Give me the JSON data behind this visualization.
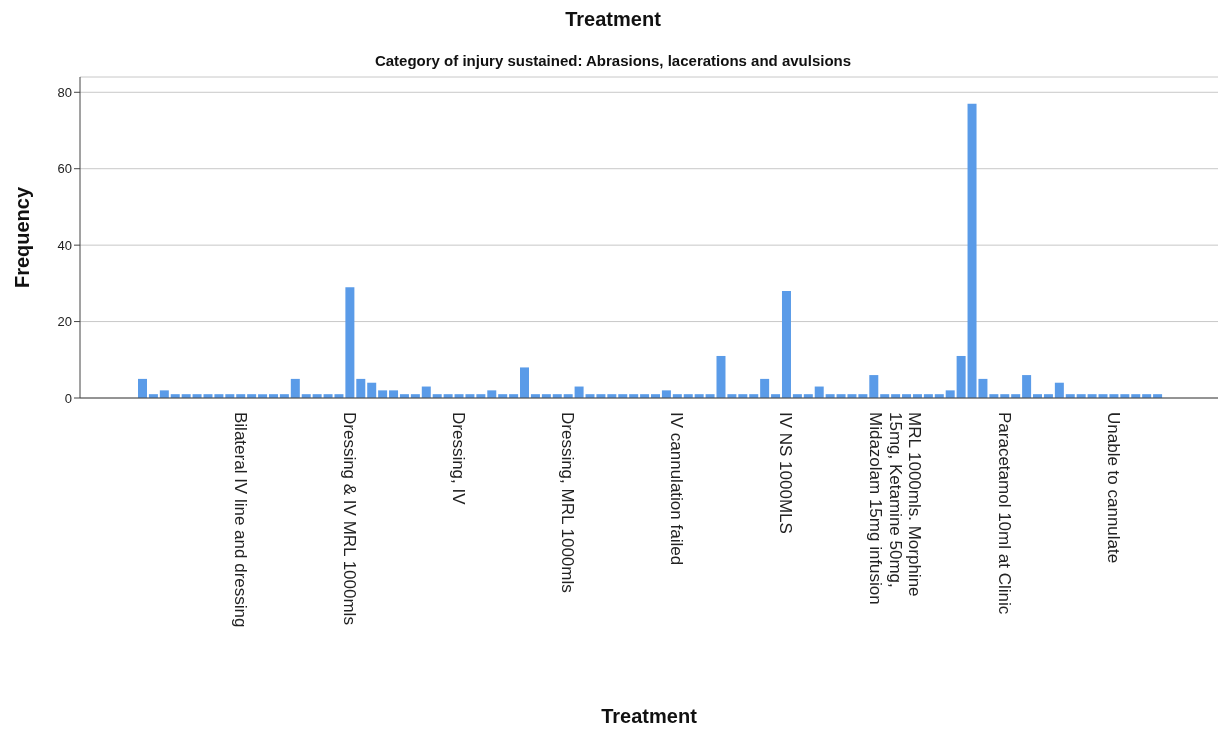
{
  "chart_data": {
    "type": "bar",
    "title": "Treatment",
    "subtitle": "Category of injury sustained: Abrasions, lacerations and avulsions",
    "xlabel": "Treatment",
    "ylabel": "Frequency",
    "categories": [
      null,
      null,
      null,
      null,
      null,
      null,
      null,
      null,
      null,
      "Bilateral IV line and dressing",
      null,
      null,
      null,
      null,
      null,
      null,
      null,
      null,
      null,
      "Dressing & IV MRL 1000mls",
      null,
      null,
      null,
      null,
      null,
      null,
      null,
      null,
      null,
      "Dressing, IV",
      null,
      null,
      null,
      null,
      null,
      null,
      null,
      null,
      null,
      "Dressing, MRL 1000mls",
      null,
      null,
      null,
      null,
      null,
      null,
      null,
      null,
      null,
      "IV cannulation failed",
      null,
      null,
      null,
      null,
      null,
      null,
      null,
      null,
      null,
      "IV NS 1000MLS",
      null,
      null,
      null,
      null,
      null,
      null,
      null,
      null,
      null,
      "MRL 1000mls. Morphine\n15mg, Ketamine 50mg,\nMidazolam 15mg infusion",
      null,
      null,
      null,
      null,
      null,
      null,
      null,
      null,
      null,
      "Paracetamol 10ml at Clinic",
      null,
      null,
      null,
      null,
      null,
      null,
      null,
      null,
      null,
      "Unable to cannulate",
      null,
      null,
      null,
      null
    ],
    "values": [
      5,
      1,
      2,
      1,
      1,
      1,
      1,
      1,
      1,
      1,
      1,
      1,
      1,
      1,
      5,
      1,
      1,
      1,
      1,
      29,
      5,
      4,
      2,
      2,
      1,
      1,
      3,
      1,
      1,
      1,
      1,
      1,
      2,
      1,
      1,
      8,
      1,
      1,
      1,
      1,
      3,
      1,
      1,
      1,
      1,
      1,
      1,
      1,
      2,
      1,
      1,
      1,
      1,
      11,
      1,
      1,
      1,
      5,
      1,
      28,
      1,
      1,
      3,
      1,
      1,
      1,
      1,
      6,
      1,
      1,
      1,
      1,
      1,
      1,
      2,
      11,
      77,
      5,
      1,
      1,
      1,
      6,
      1,
      1,
      4,
      1,
      1,
      1,
      1,
      1,
      1,
      1,
      1,
      1
    ],
    "color": "#5a9be8",
    "ylim": [
      0,
      84
    ],
    "yticks": [
      0,
      20,
      40,
      60,
      80
    ],
    "grid": "y"
  }
}
